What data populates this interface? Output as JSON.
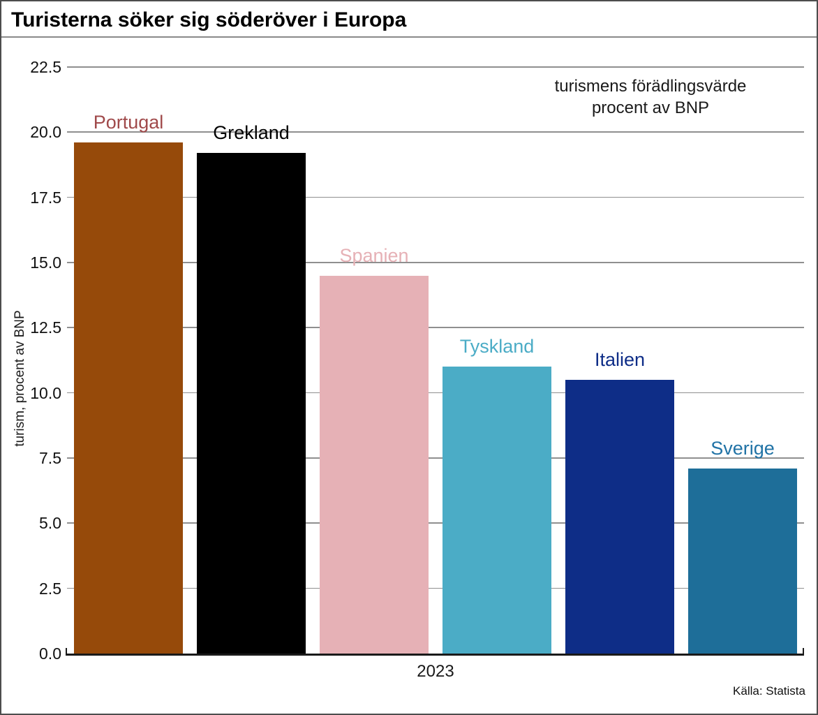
{
  "chart_data": {
    "type": "bar",
    "title": "Turisterna söker sig söderöver i Europa",
    "annotation_line1": "turismens förädlingsvärde",
    "annotation_line2": "procent av BNP",
    "xlabel": "2023",
    "ylabel": "turism, procent av BNP",
    "ylim": [
      0,
      22.5
    ],
    "ytick_step": 2.5,
    "yticks": [
      0.0,
      2.5,
      5.0,
      7.5,
      10.0,
      12.5,
      15.0,
      17.5,
      20.0,
      22.5
    ],
    "grid": true,
    "label_position": "above-bars",
    "categories": [
      "Portugal",
      "Grekland",
      "Spanien",
      "Tyskland",
      "Italien",
      "Sverige"
    ],
    "values": [
      19.6,
      19.2,
      14.5,
      11.0,
      10.5,
      7.1
    ],
    "bar_colors": [
      "#964A0A",
      "#000000",
      "#E6B1B6",
      "#4BACC6",
      "#0E2D87",
      "#1E6E99"
    ],
    "label_colors": [
      "#A04A4B",
      "#000000",
      "#E6B1B6",
      "#4BACC6",
      "#0E2D87",
      "#2173A6"
    ],
    "source": "Källa: Statista"
  }
}
